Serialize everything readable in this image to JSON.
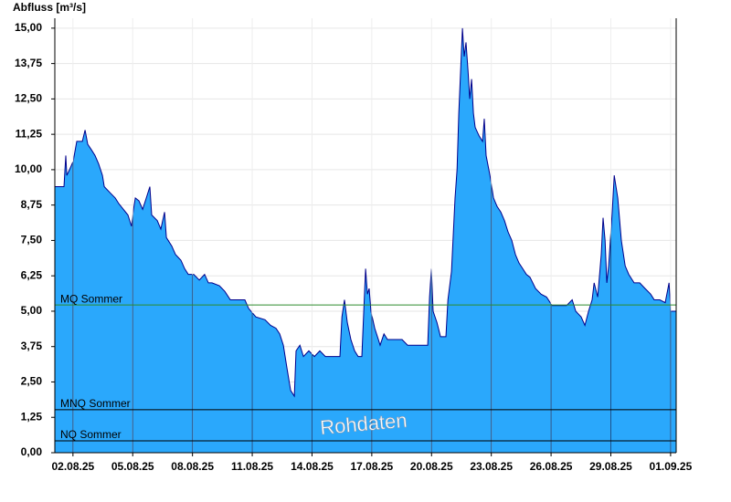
{
  "chart_data": {
    "type": "area",
    "ylabel": "Abfluss [m³/s]",
    "x": [
      0.09,
      0.55,
      0.64,
      0.69,
      0.83,
      1.01,
      1.19,
      1.47,
      1.61,
      1.74,
      1.93,
      2.11,
      2.29,
      2.48,
      2.57,
      2.84,
      3.12,
      3.3,
      3.53,
      3.76,
      3.94,
      4.04,
      4.13,
      4.31,
      4.5,
      4.68,
      4.86,
      4.95,
      5.23,
      5.41,
      5.6,
      5.69,
      5.96,
      6.15,
      6.42,
      6.61,
      6.79,
      7.06,
      7.34,
      7.61,
      7.8,
      7.98,
      8.35,
      8.62,
      8.9,
      9.17,
      9.63,
      9.82,
      10.18,
      10.64,
      10.92,
      11.19,
      11.38,
      11.56,
      11.74,
      11.93,
      12.11,
      12.2,
      12.39,
      12.57,
      12.84,
      13.12,
      13.39,
      13.67,
      14.04,
      14.4,
      14.5,
      14.63,
      14.77,
      14.95,
      15.14,
      15.32,
      15.5,
      15.6,
      15.69,
      15.78,
      15.87,
      15.96,
      16.15,
      16.33,
      16.42,
      16.61,
      16.79,
      17.06,
      17.52,
      17.8,
      18.17,
      18.44,
      18.81,
      18.9,
      18.99,
      19.08,
      19.27,
      19.45,
      19.72,
      19.82,
      20.0,
      20.18,
      20.28,
      20.37,
      20.46,
      20.55,
      20.64,
      20.73,
      20.83,
      20.92,
      21.01,
      21.1,
      21.19,
      21.38,
      21.56,
      21.65,
      21.74,
      21.93,
      22.11,
      22.29,
      22.48,
      22.66,
      22.84,
      23.03,
      23.21,
      23.39,
      23.58,
      23.76,
      23.94,
      24.22,
      24.5,
      24.77,
      25.05,
      25.41,
      25.78,
      26.06,
      26.24,
      26.51,
      26.7,
      26.88,
      27.06,
      27.16,
      27.34,
      27.52,
      27.61,
      27.71,
      27.8,
      27.89,
      28.07,
      28.17,
      28.35,
      28.53,
      28.72,
      28.9,
      29.17,
      29.45,
      29.72,
      30.0,
      30.18,
      30.46,
      30.73,
      30.92,
      31.01,
      31.28
    ],
    "series": [
      {
        "name": "Abfluss",
        "color": "#2aa8fc",
        "line_color": "#00008b",
        "values": [
          9.4,
          9.4,
          10.5,
          9.8,
          10.0,
          10.3,
          11.0,
          11.0,
          11.4,
          10.9,
          10.7,
          10.5,
          10.2,
          9.8,
          9.4,
          9.2,
          9.0,
          8.8,
          8.6,
          8.4,
          8.0,
          8.6,
          9.0,
          8.9,
          8.6,
          9.0,
          9.4,
          8.4,
          8.2,
          7.9,
          8.5,
          7.6,
          7.3,
          7.0,
          6.8,
          6.5,
          6.3,
          6.3,
          6.1,
          6.3,
          6.0,
          6.0,
          5.9,
          5.7,
          5.4,
          5.4,
          5.4,
          5.1,
          4.8,
          4.7,
          4.5,
          4.4,
          4.2,
          3.8,
          3.0,
          2.2,
          2.0,
          3.6,
          3.8,
          3.4,
          3.6,
          3.4,
          3.6,
          3.4,
          3.4,
          3.4,
          4.8,
          5.4,
          4.6,
          4.0,
          3.6,
          3.4,
          3.4,
          5.0,
          6.5,
          5.6,
          5.8,
          5.0,
          4.4,
          4.0,
          3.8,
          4.2,
          4.0,
          4.0,
          4.0,
          3.8,
          3.8,
          3.8,
          3.8,
          5.5,
          6.5,
          5.0,
          4.6,
          4.1,
          4.1,
          5.4,
          6.4,
          9.0,
          10.0,
          12.0,
          13.5,
          15.0,
          14.0,
          14.5,
          13.5,
          12.5,
          13.2,
          12.0,
          11.5,
          11.2,
          11.0,
          11.8,
          10.5,
          9.8,
          9.0,
          8.7,
          8.5,
          8.2,
          7.8,
          7.5,
          7.0,
          6.7,
          6.5,
          6.3,
          6.2,
          5.8,
          5.6,
          5.5,
          5.2,
          5.2,
          5.2,
          5.4,
          5.0,
          4.8,
          4.5,
          5.0,
          5.4,
          6.0,
          5.5,
          7.0,
          8.3,
          7.5,
          6.0,
          6.6,
          8.5,
          9.8,
          9.0,
          7.5,
          6.6,
          6.3,
          6.0,
          6.0,
          5.8,
          5.6,
          5.4,
          5.4,
          5.3,
          6.0,
          5.0,
          5.0
        ]
      }
    ],
    "xlim": [
      0.09,
      31.28
    ],
    "xticks": [
      {
        "value": 1,
        "label": "02.08.25"
      },
      {
        "value": 4,
        "label": "05.08.25"
      },
      {
        "value": 7,
        "label": "08.08.25"
      },
      {
        "value": 10,
        "label": "11.08.25"
      },
      {
        "value": 13,
        "label": "14.08.25"
      },
      {
        "value": 16,
        "label": "17.08.25"
      },
      {
        "value": 19,
        "label": "20.08.25"
      },
      {
        "value": 22,
        "label": "23.08.25"
      },
      {
        "value": 25,
        "label": "26.08.25"
      },
      {
        "value": 28,
        "label": "29.08.25"
      },
      {
        "value": 31,
        "label": "01.09.25"
      }
    ],
    "ylim": [
      0,
      15.35
    ],
    "yticks": [
      {
        "value": 0,
        "label": "0,00"
      },
      {
        "value": 1.25,
        "label": "1,25"
      },
      {
        "value": 2.5,
        "label": "2,50"
      },
      {
        "value": 3.75,
        "label": "3,75"
      },
      {
        "value": 5,
        "label": "5,00"
      },
      {
        "value": 6.25,
        "label": "6,25"
      },
      {
        "value": 7.5,
        "label": "7,50"
      },
      {
        "value": 8.75,
        "label": "8,75"
      },
      {
        "value": 10,
        "label": "10,00"
      },
      {
        "value": 11.25,
        "label": "11,25"
      },
      {
        "value": 12.5,
        "label": "12,50"
      },
      {
        "value": 13.75,
        "label": "13,75"
      },
      {
        "value": 15,
        "label": "15,00"
      }
    ],
    "grid": true,
    "reference_lines": [
      {
        "label": "MQ Sommer",
        "value": 5.22,
        "color": "#2e8b2e"
      },
      {
        "label": "MNQ Sommer",
        "value": 1.52,
        "color": "#000000"
      },
      {
        "label": "NQ Sommer",
        "value": 0.42,
        "color": "#000000"
      }
    ],
    "watermark": "Rohdaten"
  }
}
